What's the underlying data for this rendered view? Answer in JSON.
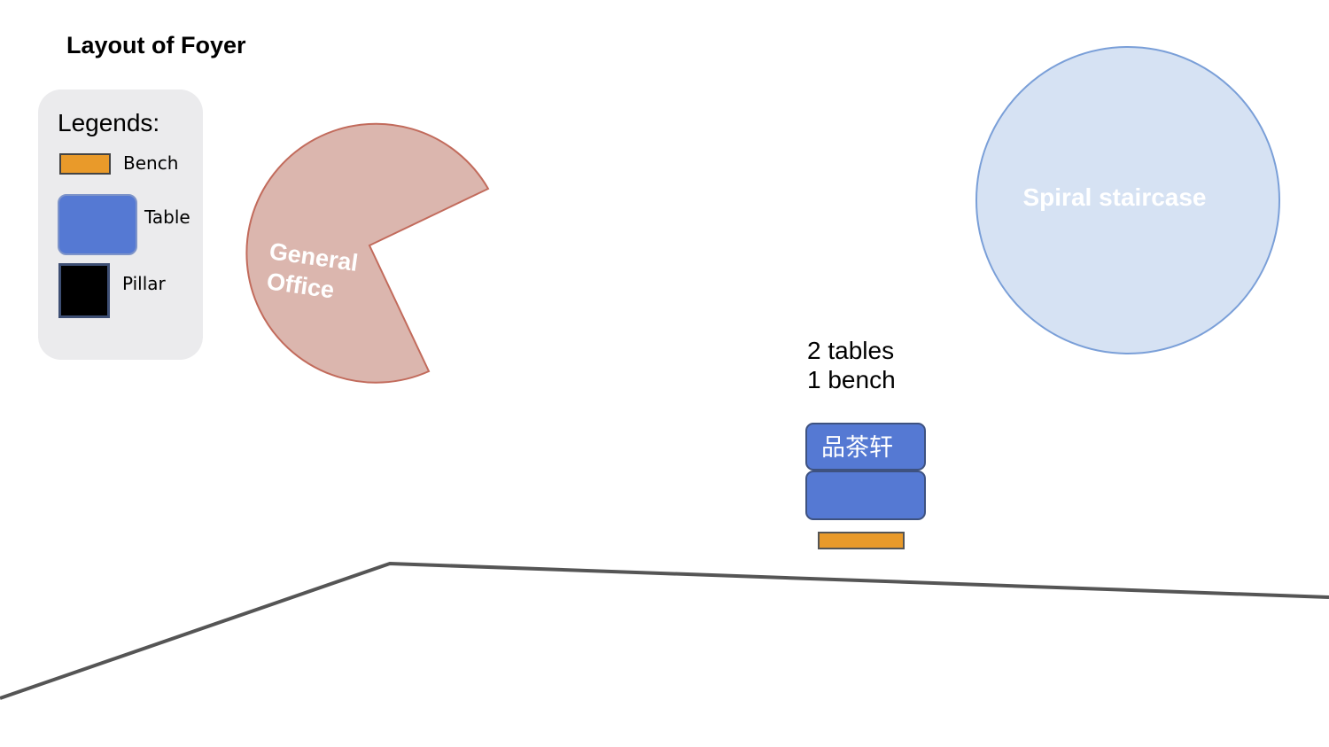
{
  "title": "Layout of Foyer",
  "legend": {
    "heading": "Legends:",
    "items": [
      {
        "label": "Bench",
        "color": "#e99a2a"
      },
      {
        "label": "Table",
        "color": "#5579d3"
      },
      {
        "label": "Pillar",
        "color": "#000000"
      }
    ]
  },
  "rooms": {
    "general_office": {
      "line1": "General",
      "line2": "Office",
      "fill": "#dbb6ae",
      "stroke": "#c26b5c"
    },
    "staircase": {
      "label": "Spiral staircase",
      "fill": "#d6e2f3",
      "stroke": "#7a9fd8"
    }
  },
  "table_group": {
    "caption_line1": "2 tables",
    "caption_line2": "1 bench",
    "table_label": "品茶轩"
  }
}
